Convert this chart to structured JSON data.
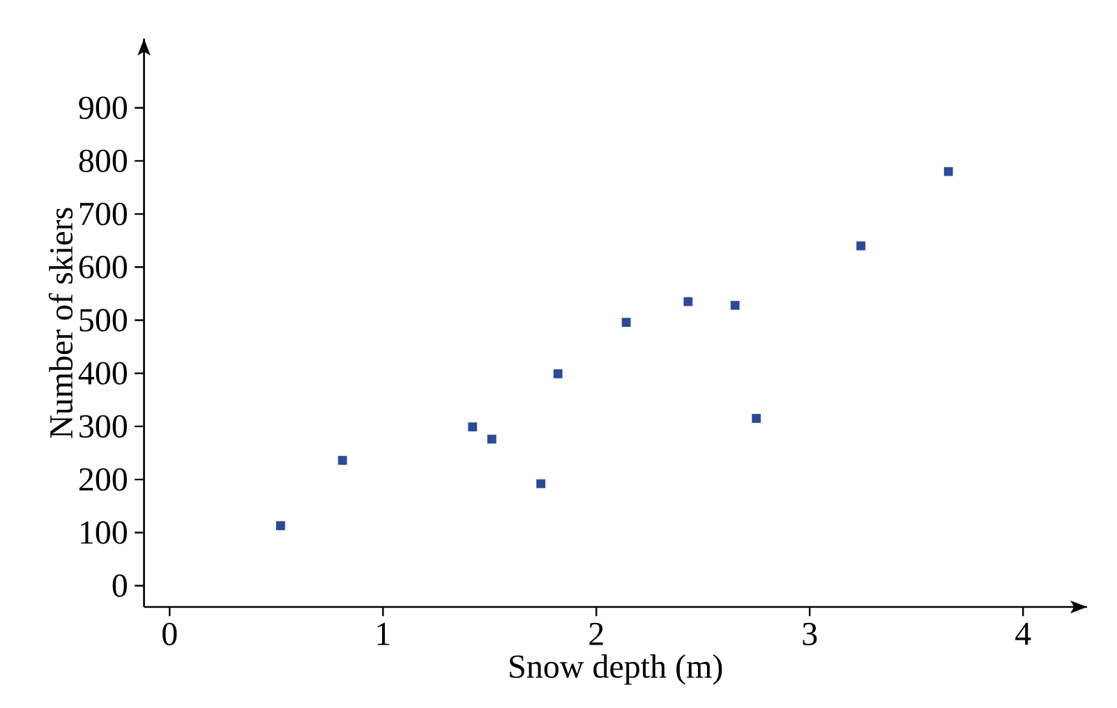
{
  "chart_data": {
    "type": "scatter",
    "xlabel": "Snow depth (m)",
    "ylabel": "Number of skiers",
    "x": [
      0.52,
      0.81,
      1.42,
      1.51,
      1.74,
      1.82,
      2.14,
      2.43,
      2.65,
      2.75,
      3.24,
      3.65
    ],
    "values": [
      113,
      236,
      299,
      276,
      192,
      399,
      496,
      535,
      528,
      315,
      640,
      780
    ],
    "color": "#2a4a9a",
    "marker": "square",
    "xlim": [
      -0.12,
      4.3
    ],
    "ylim": [
      -40,
      1030
    ],
    "xticks": [
      0,
      1,
      2,
      3,
      4
    ],
    "yticks": [
      0,
      100,
      200,
      300,
      400,
      500,
      600,
      700,
      800,
      900
    ]
  }
}
